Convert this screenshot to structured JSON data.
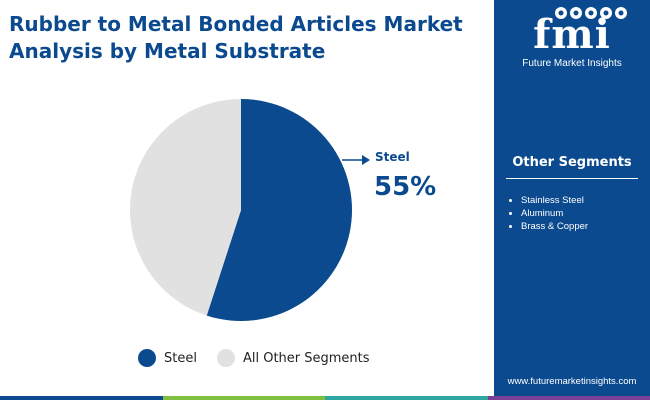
{
  "title": "Rubber to Metal Bonded Articles Market Analysis by Metal Substrate",
  "logo": {
    "mark": "fmi",
    "text": "Future Market Insights"
  },
  "panel": {
    "title": "Other Segments",
    "items": [
      "Stainless Steel",
      "Aluminum",
      "Brass & Copper"
    ],
    "website": "www.futuremarketinsights.com"
  },
  "colors": {
    "brand": "#0b4a8f",
    "other": "#e1e1e1",
    "bar": [
      "#0b4a8f",
      "#7fbf3f",
      "#2fa7a0",
      "#7b3f98"
    ]
  },
  "icons": [
    "logo-icons"
  ],
  "chart_data": {
    "type": "pie",
    "slices": [
      {
        "label": "Steel",
        "value": 55,
        "color": "#0b4a8f"
      },
      {
        "label": "All Other Segments",
        "value": 45,
        "color": "#e1e1e1"
      }
    ],
    "callout": {
      "label": "Steel",
      "value": "55%"
    },
    "legend": {
      "placement": "bottom"
    }
  }
}
